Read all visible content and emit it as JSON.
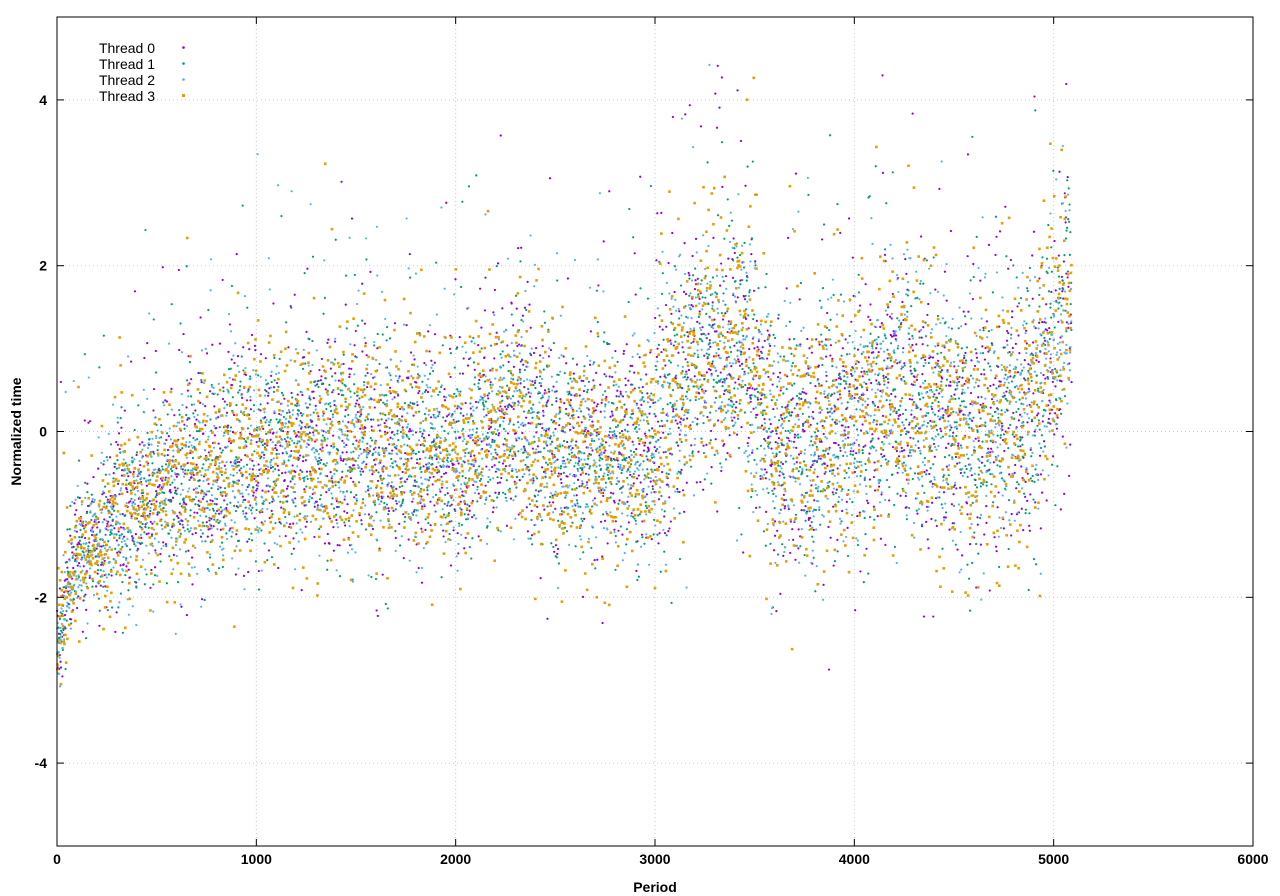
{
  "chart_data": {
    "type": "scatter",
    "title": "",
    "xlabel": "Period",
    "ylabel": "Normalized time",
    "xlim": [
      0,
      6000
    ],
    "ylim": [
      -5,
      5
    ],
    "x_ticks": [
      0,
      1000,
      2000,
      3000,
      4000,
      5000,
      6000
    ],
    "y_ticks": [
      -4,
      -2,
      0,
      2,
      4
    ],
    "grid": true,
    "legend_position": "top-left",
    "point_count_per_series": 5090,
    "series": [
      {
        "name": "Thread 0",
        "color": "#9400d3",
        "marker": "dot"
      },
      {
        "name": "Thread 1",
        "color": "#009e73",
        "marker": "dot"
      },
      {
        "name": "Thread 2",
        "color": "#56b4e9",
        "marker": "dot"
      },
      {
        "name": "Thread 3",
        "color": "#e69f00",
        "marker": "square"
      }
    ],
    "trend_summary": [
      {
        "x": 0,
        "y": -2.6
      },
      {
        "x": 100,
        "y": -1.5
      },
      {
        "x": 300,
        "y": -1.0
      },
      {
        "x": 700,
        "y": -0.5
      },
      {
        "x": 1000,
        "y": -0.3
      },
      {
        "x": 1500,
        "y": -0.1
      },
      {
        "x": 2000,
        "y": -0.3
      },
      {
        "x": 2300,
        "y": 0.3
      },
      {
        "x": 2500,
        "y": -0.3
      },
      {
        "x": 3000,
        "y": -0.2
      },
      {
        "x": 3200,
        "y": 0.9
      },
      {
        "x": 3450,
        "y": 1.0
      },
      {
        "x": 3600,
        "y": -0.2
      },
      {
        "x": 4000,
        "y": 0.1
      },
      {
        "x": 4200,
        "y": 0.5
      },
      {
        "x": 4500,
        "y": 0.0
      },
      {
        "x": 4800,
        "y": 0.1
      },
      {
        "x": 5000,
        "y": 0.9
      },
      {
        "x": 5080,
        "y": 1.6
      }
    ]
  }
}
